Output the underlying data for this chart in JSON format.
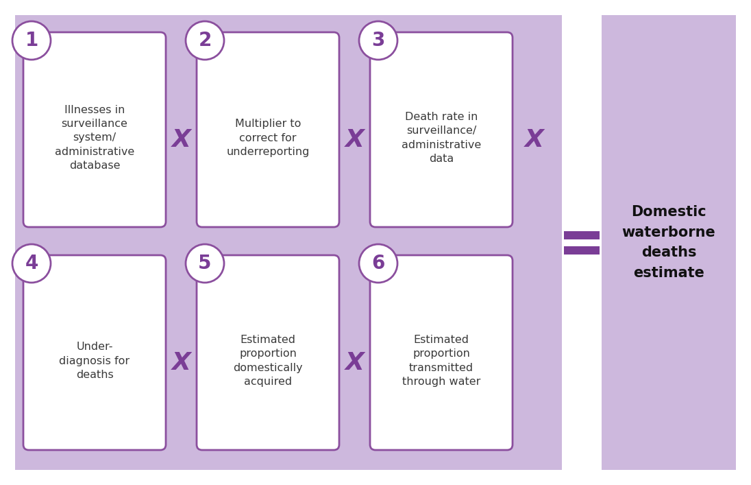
{
  "bg_color": "#ffffff",
  "main_panel_color": "#cdb8dd",
  "right_panel_color": "#cdb8dd",
  "box_color": "#ffffff",
  "box_edge_color": "#8b4f9e",
  "circle_color": "#ffffff",
  "circle_edge_color": "#8b4f9e",
  "number_color": "#7a3d96",
  "text_color": "#3a3a3a",
  "multiply_color": "#7a3d96",
  "equals_color": "#7a3d96",
  "result_text_color": "#111111",
  "boxes": [
    {
      "num": "1",
      "text": "Illnesses in\nsurveillance\nsystem/\nadministrative\ndatabase",
      "row": 0,
      "col": 0
    },
    {
      "num": "2",
      "text": "Multiplier to\ncorrect for\nunderreporting",
      "row": 0,
      "col": 1
    },
    {
      "num": "3",
      "text": "Death rate in\nsurveillance/\nadministrative\ndata",
      "row": 0,
      "col": 2
    },
    {
      "num": "4",
      "text": "Under-\ndiagnosis for\ndeaths",
      "row": 1,
      "col": 0
    },
    {
      "num": "5",
      "text": "Estimated\nproportion\ndomestically\nacquired",
      "row": 1,
      "col": 1
    },
    {
      "num": "6",
      "text": "Estimated\nproportion\ntransmitted\nthrough water",
      "row": 1,
      "col": 2
    }
  ],
  "result_text": "Domestic\nwaterborne\ndeaths\nestimate",
  "fig_w": 10.96,
  "fig_h": 7.07,
  "dpi": 100
}
